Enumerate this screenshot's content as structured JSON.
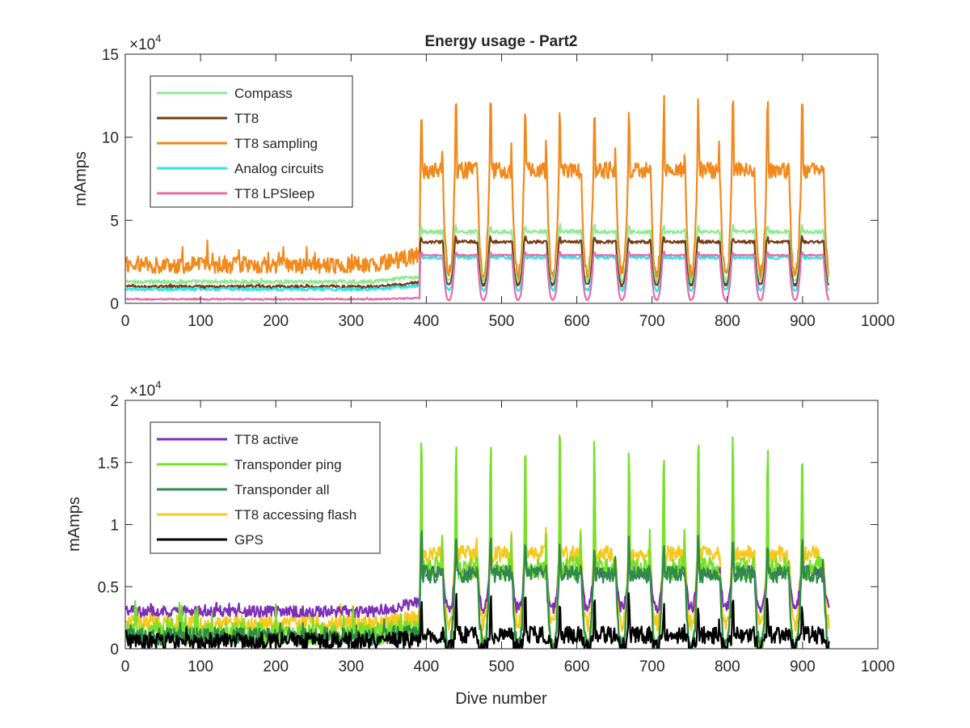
{
  "chart_data": [
    {
      "type": "line",
      "title": "Energy usage - Part2",
      "xlabel": "",
      "ylabel": "mAmps",
      "y_exponent_label": "×10",
      "y_exponent_power": "4",
      "xlim": [
        0,
        1000
      ],
      "ylim": [
        0,
        150000
      ],
      "xticks": [
        "0",
        "100",
        "200",
        "300",
        "400",
        "500",
        "600",
        "700",
        "800",
        "900",
        "1000"
      ],
      "yticks": [
        "0",
        "5",
        "10",
        "15"
      ],
      "legend_position": "top-left",
      "grid": false,
      "x_range": [
        1,
        935
      ],
      "transition_dive": 392,
      "series": [
        {
          "name": "Compass",
          "color": "#8FEA95",
          "pre_level": 13000,
          "post_high": 43000,
          "post_low": 14000,
          "noise": 1200,
          "spike_amp": 4000,
          "z": 1
        },
        {
          "name": "TT8",
          "color": "#7A3A13",
          "pre_level": 10000,
          "post_high": 37000,
          "post_low": 11000,
          "noise": 900,
          "spike_amp": 3000,
          "z": 2
        },
        {
          "name": "TT8 sampling",
          "color": "#F2891C",
          "pre_level": 23000,
          "post_high": 80000,
          "post_low": 18000,
          "noise": 5000,
          "spike_amp": 45000,
          "z": 0
        },
        {
          "name": "Analog circuits",
          "color": "#2EE5E8",
          "pre_level": 8500,
          "post_high": 27500,
          "post_low": 8000,
          "noise": 900,
          "spike_amp": 2500,
          "z": 3
        },
        {
          "name": "TT8 LPSleep",
          "color": "#E66CA8",
          "pre_level": 2500,
          "post_high": 29000,
          "post_low": 2000,
          "noise": 400,
          "spike_amp": 2000,
          "z": 4
        }
      ]
    },
    {
      "type": "line",
      "title": "",
      "xlabel": "Dive number",
      "ylabel": "mAmps",
      "y_exponent_label": "×10",
      "y_exponent_power": "4",
      "xlim": [
        0,
        1000
      ],
      "ylim": [
        0,
        20000
      ],
      "xticks": [
        "0",
        "100",
        "200",
        "300",
        "400",
        "500",
        "600",
        "700",
        "800",
        "900",
        "1000"
      ],
      "yticks": [
        "0",
        "0.5",
        "1",
        "1.5",
        "2"
      ],
      "legend_position": "top-left",
      "grid": false,
      "x_range": [
        1,
        935
      ],
      "transition_dive": 392,
      "series": [
        {
          "name": "TT8 active",
          "color": "#7E2FB8",
          "pre_level": 3000,
          "post_high": 6200,
          "post_low": 3300,
          "noise": 450,
          "spike_amp": 1800,
          "z": 1
        },
        {
          "name": "Transponder ping",
          "color": "#77E02A",
          "pre_level": 1200,
          "post_high": 6500,
          "post_low": 0,
          "noise": 900,
          "spike_amp": 11000,
          "z": 2
        },
        {
          "name": "Transponder all",
          "color": "#2E8B4A",
          "pre_level": 1000,
          "post_high": 6000,
          "post_low": 200,
          "noise": 700,
          "spike_amp": 3000,
          "z": 3
        },
        {
          "name": "TT8 accessing flash",
          "color": "#F7C81E",
          "pre_level": 2000,
          "post_high": 7600,
          "post_low": 2000,
          "noise": 700,
          "spike_amp": 5000,
          "z": 0
        },
        {
          "name": "GPS",
          "color": "#000000",
          "pre_level": 600,
          "post_high": 1100,
          "post_low": 100,
          "noise": 700,
          "spike_amp": 3000,
          "z": 4
        }
      ]
    }
  ]
}
